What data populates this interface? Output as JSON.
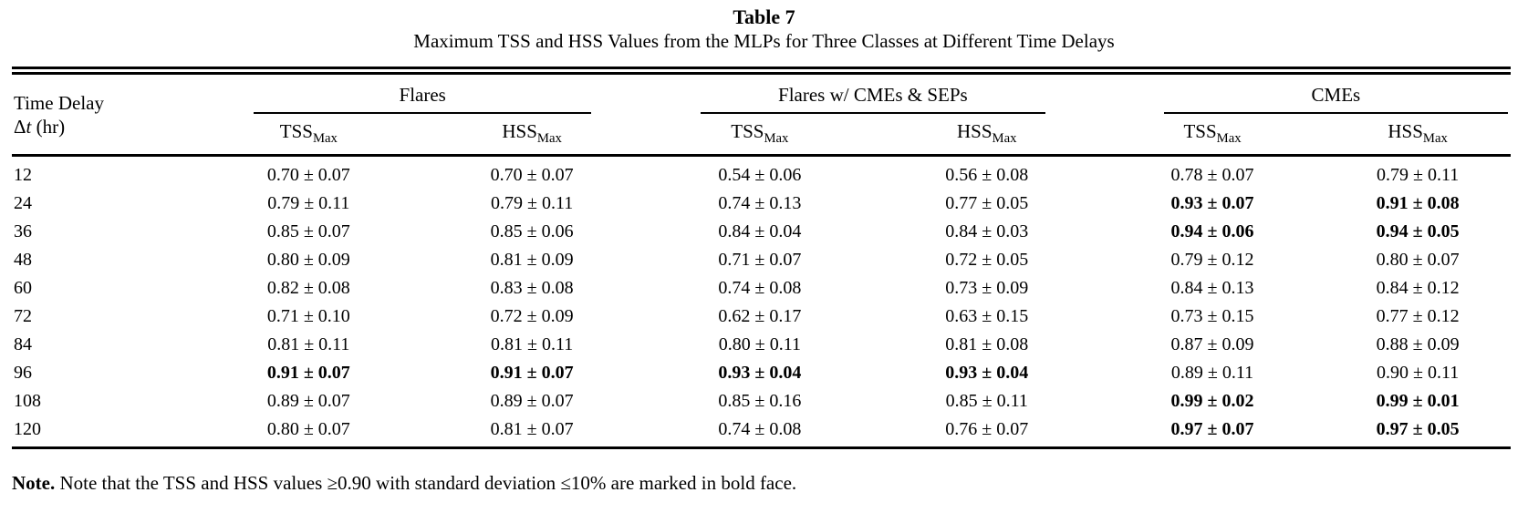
{
  "title": "Table 7",
  "subtitle": "Maximum TSS and HSS Values from the MLPs for Three Classes at Different Time Delays",
  "header": {
    "row_label_line1": "Time Delay",
    "row_label_delta": "Δ",
    "row_label_var": "t",
    "row_label_suffix": " (hr)",
    "groups": [
      {
        "label": "Flares",
        "subcols": [
          {
            "base": "TSS",
            "sub": "Max"
          },
          {
            "base": "HSS",
            "sub": "Max"
          }
        ]
      },
      {
        "label": "Flares w/ CMEs & SEPs",
        "subcols": [
          {
            "base": "TSS",
            "sub": "Max"
          },
          {
            "base": "HSS",
            "sub": "Max"
          }
        ]
      },
      {
        "label": "CMEs",
        "subcols": [
          {
            "base": "TSS",
            "sub": "Max"
          },
          {
            "base": "HSS",
            "sub": "Max"
          }
        ]
      }
    ]
  },
  "table": {
    "rows": [
      {
        "delay": "12",
        "cells": [
          {
            "v": "0.70 ± 0.07",
            "w": "normal"
          },
          {
            "v": "0.70 ± 0.07",
            "w": "normal"
          },
          {
            "v": "0.54 ± 0.06",
            "w": "normal"
          },
          {
            "v": "0.56 ± 0.08",
            "w": "normal"
          },
          {
            "v": "0.78 ± 0.07",
            "w": "normal"
          },
          {
            "v": "0.79 ± 0.11",
            "w": "normal"
          }
        ]
      },
      {
        "delay": "24",
        "cells": [
          {
            "v": "0.79 ± 0.11",
            "w": "normal"
          },
          {
            "v": "0.79 ± 0.11",
            "w": "normal"
          },
          {
            "v": "0.74 ± 0.13",
            "w": "normal"
          },
          {
            "v": "0.77 ± 0.05",
            "w": "normal"
          },
          {
            "v": "0.93 ± 0.07",
            "w": "bold"
          },
          {
            "v": "0.91 ± 0.08",
            "w": "bold"
          }
        ]
      },
      {
        "delay": "36",
        "cells": [
          {
            "v": "0.85 ± 0.07",
            "w": "normal"
          },
          {
            "v": "0.85 ± 0.06",
            "w": "normal"
          },
          {
            "v": "0.84 ± 0.04",
            "w": "normal"
          },
          {
            "v": "0.84 ± 0.03",
            "w": "normal"
          },
          {
            "v": "0.94 ± 0.06",
            "w": "bold"
          },
          {
            "v": "0.94 ± 0.05",
            "w": "bold"
          }
        ]
      },
      {
        "delay": "48",
        "cells": [
          {
            "v": "0.80 ± 0.09",
            "w": "normal"
          },
          {
            "v": "0.81 ± 0.09",
            "w": "normal"
          },
          {
            "v": "0.71 ± 0.07",
            "w": "normal"
          },
          {
            "v": "0.72 ± 0.05",
            "w": "normal"
          },
          {
            "v": "0.79 ± 0.12",
            "w": "normal"
          },
          {
            "v": "0.80 ± 0.07",
            "w": "normal"
          }
        ]
      },
      {
        "delay": "60",
        "cells": [
          {
            "v": "0.82 ± 0.08",
            "w": "normal"
          },
          {
            "v": "0.83 ± 0.08",
            "w": "normal"
          },
          {
            "v": "0.74 ± 0.08",
            "w": "normal"
          },
          {
            "v": "0.73 ± 0.09",
            "w": "normal"
          },
          {
            "v": "0.84 ± 0.13",
            "w": "normal"
          },
          {
            "v": "0.84 ± 0.12",
            "w": "normal"
          }
        ]
      },
      {
        "delay": "72",
        "cells": [
          {
            "v": "0.71 ± 0.10",
            "w": "normal"
          },
          {
            "v": "0.72 ± 0.09",
            "w": "normal"
          },
          {
            "v": "0.62 ± 0.17",
            "w": "normal"
          },
          {
            "v": "0.63 ± 0.15",
            "w": "normal"
          },
          {
            "v": "0.73 ± 0.15",
            "w": "normal"
          },
          {
            "v": "0.77 ± 0.12",
            "w": "normal"
          }
        ]
      },
      {
        "delay": "84",
        "cells": [
          {
            "v": "0.81 ± 0.11",
            "w": "normal"
          },
          {
            "v": "0.81 ± 0.11",
            "w": "normal"
          },
          {
            "v": "0.80 ± 0.11",
            "w": "normal"
          },
          {
            "v": "0.81 ± 0.08",
            "w": "normal"
          },
          {
            "v": "0.87 ± 0.09",
            "w": "normal"
          },
          {
            "v": "0.88 ± 0.09",
            "w": "normal"
          }
        ]
      },
      {
        "delay": "96",
        "cells": [
          {
            "v": "0.91 ± 0.07",
            "w": "bold"
          },
          {
            "v": "0.91 ± 0.07",
            "w": "bold"
          },
          {
            "v": "0.93 ± 0.04",
            "w": "bold"
          },
          {
            "v": "0.93 ± 0.04",
            "w": "bold"
          },
          {
            "v": "0.89 ± 0.11",
            "w": "normal"
          },
          {
            "v": "0.90 ± 0.11",
            "w": "normal"
          }
        ]
      },
      {
        "delay": "108",
        "cells": [
          {
            "v": "0.89 ± 0.07",
            "w": "normal"
          },
          {
            "v": "0.89 ± 0.07",
            "w": "normal"
          },
          {
            "v": "0.85 ± 0.16",
            "w": "normal"
          },
          {
            "v": "0.85 ± 0.11",
            "w": "normal"
          },
          {
            "v": "0.99 ± 0.02",
            "w": "bold"
          },
          {
            "v": "0.99 ± 0.01",
            "w": "bold"
          }
        ]
      },
      {
        "delay": "120",
        "cells": [
          {
            "v": "0.80 ± 0.07",
            "w": "normal"
          },
          {
            "v": "0.81 ± 0.07",
            "w": "normal"
          },
          {
            "v": "0.74 ± 0.08",
            "w": "normal"
          },
          {
            "v": "0.76 ± 0.07",
            "w": "normal"
          },
          {
            "v": "0.97 ± 0.07",
            "w": "bold"
          },
          {
            "v": "0.97 ± 0.05",
            "w": "bold"
          }
        ]
      }
    ]
  },
  "note": {
    "label": "Note.",
    "text": " Note that the TSS and HSS values ≥0.90 with standard deviation ≤10% are marked in bold face."
  }
}
